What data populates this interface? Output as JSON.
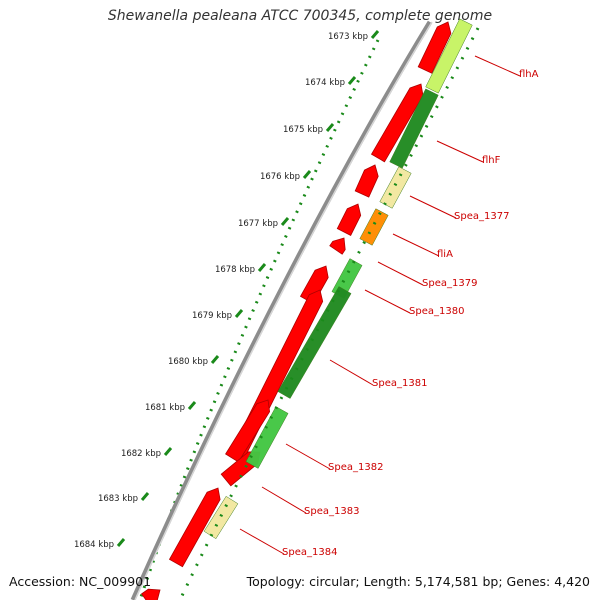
{
  "title": "Shewanella pealeana ATCC 700345, complete genome",
  "accession_text": "Accession: NC_009901",
  "summary_text": "Topology: circular; Length: 5,174,581 bp; Genes: 4,420",
  "colors": {
    "backbone": "#8c8c8c",
    "forward_gene": "#ff0000",
    "reverse_gene_dark": "#228b22",
    "reverse_gene_light": "#44c744",
    "lime_gene": "#c7f464",
    "pale_gene": "#f2e8a0",
    "orange_gene": "#ff8c00",
    "scale_dots": "#1a8a1a",
    "label_text": "#cc0000",
    "tick_text": "#222222"
  },
  "scale_ticks": [
    {
      "label": "1673 kbp"
    },
    {
      "label": "1674 kbp"
    },
    {
      "label": "1675 kbp"
    },
    {
      "label": "1676 kbp"
    },
    {
      "label": "1677 kbp"
    },
    {
      "label": "1678 kbp"
    },
    {
      "label": "1679 kbp"
    },
    {
      "label": "1680 kbp"
    },
    {
      "label": "1681 kbp"
    },
    {
      "label": "1682 kbp"
    },
    {
      "label": "1683 kbp"
    },
    {
      "label": "1684 kbp"
    }
  ],
  "gene_labels": [
    {
      "name": "flhA"
    },
    {
      "name": "flhF"
    },
    {
      "name": "Spea_1377"
    },
    {
      "name": "fliA"
    },
    {
      "name": "Spea_1379"
    },
    {
      "name": "Spea_1380"
    },
    {
      "name": "Spea_1381"
    },
    {
      "name": "Spea_1382"
    },
    {
      "name": "Spea_1383"
    },
    {
      "name": "Spea_1384"
    }
  ]
}
